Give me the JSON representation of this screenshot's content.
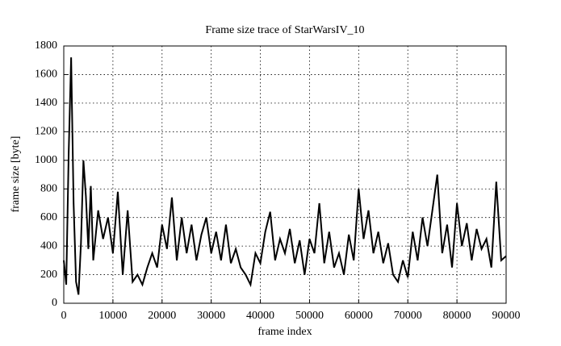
{
  "chart_data": {
    "type": "line",
    "title": "Frame size trace of StarWarsIV_10",
    "x_label": "frame index",
    "y_label": "frame size [byte]",
    "x": [
      0,
      500,
      1000,
      1500,
      2000,
      2500,
      3000,
      3500,
      4000,
      4500,
      5000,
      5500,
      6000,
      7000,
      8000,
      9000,
      10000,
      11000,
      12000,
      13000,
      14000,
      15000,
      16000,
      17000,
      18000,
      19000,
      20000,
      21000,
      22000,
      23000,
      24000,
      25000,
      26000,
      27000,
      28000,
      29000,
      30000,
      31000,
      32000,
      33000,
      34000,
      35000,
      36000,
      37000,
      38000,
      39000,
      40000,
      41000,
      42000,
      43000,
      44000,
      45000,
      46000,
      47000,
      48000,
      49000,
      50000,
      51000,
      52000,
      53000,
      54000,
      55000,
      56000,
      57000,
      58000,
      59000,
      60000,
      61000,
      62000,
      63000,
      64000,
      65000,
      66000,
      67000,
      68000,
      69000,
      70000,
      71000,
      72000,
      73000,
      74000,
      75000,
      76000,
      77000,
      78000,
      79000,
      80000,
      81000,
      82000,
      83000,
      84000,
      85000,
      86000,
      87000,
      88000,
      89000,
      90000
    ],
    "series": [
      {
        "name": "frame size",
        "color": "#000000",
        "values": [
          300,
          130,
          1050,
          1720,
          700,
          150,
          60,
          420,
          1000,
          750,
          380,
          820,
          300,
          650,
          450,
          600,
          350,
          780,
          200,
          650,
          150,
          200,
          130,
          250,
          350,
          250,
          550,
          380,
          740,
          300,
          600,
          350,
          550,
          300,
          480,
          600,
          350,
          500,
          300,
          550,
          280,
          380,
          250,
          200,
          130,
          350,
          280,
          500,
          640,
          300,
          450,
          350,
          520,
          280,
          440,
          200,
          450,
          350,
          700,
          280,
          500,
          250,
          350,
          200,
          480,
          300,
          800,
          450,
          650,
          350,
          500,
          280,
          420,
          200,
          150,
          300,
          180,
          500,
          300,
          600,
          400,
          650,
          900,
          350,
          550,
          250,
          700,
          400,
          560,
          300,
          520,
          380,
          450,
          250,
          850,
          300,
          330
        ]
      }
    ],
    "xlim": [
      0,
      90000
    ],
    "ylim": [
      0,
      1800
    ],
    "xticks": [
      0,
      10000,
      20000,
      30000,
      40000,
      50000,
      60000,
      70000,
      80000,
      90000
    ],
    "yticks": [
      0,
      200,
      400,
      600,
      800,
      1000,
      1200,
      1400,
      1600,
      1800
    ],
    "grid": true
  }
}
